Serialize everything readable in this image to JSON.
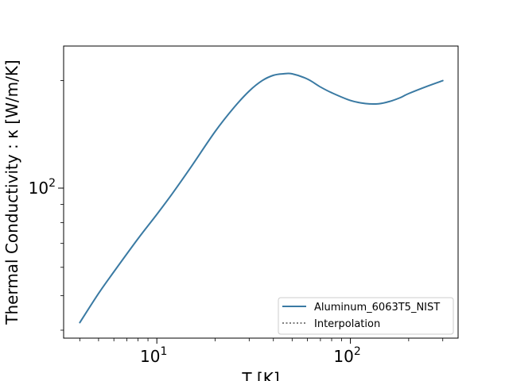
{
  "chart_data": {
    "type": "line",
    "title": "",
    "xlabel": "T [K]",
    "ylabel": "Thermal Conductivity : κ [W/m/K]",
    "xscale": "log",
    "yscale": "log",
    "xlim": [
      3.3,
      360
    ],
    "ylim": [
      38,
      250
    ],
    "x_ticks": [
      {
        "value": 10,
        "label": "10",
        "exp": "1"
      },
      {
        "value": 100,
        "label": "10",
        "exp": "2"
      }
    ],
    "y_ticks": [
      {
        "value": 100,
        "label": "10",
        "exp": "2"
      }
    ],
    "grid": false,
    "legend_position": "lower right",
    "series": [
      {
        "name": "Aluminum_6063T5_NIST",
        "style": "solid",
        "color": "#3a7aa3",
        "x": [
          4,
          5,
          6,
          8,
          10,
          12,
          15,
          20,
          25,
          30,
          35,
          40,
          45,
          50,
          60,
          70,
          80,
          100,
          120,
          140,
          160,
          180,
          200,
          250,
          300
        ],
        "y": [
          42,
          50.7,
          58.3,
          72.2,
          84.4,
          96.4,
          114.5,
          144,
          168,
          187,
          200,
          207,
          209,
          209,
          202,
          192,
          185,
          176,
          172.5,
          172.3,
          175,
          179,
          184,
          193,
          200
        ]
      },
      {
        "name": "Interpolation",
        "style": "dotted",
        "color": "#7f7f7f",
        "x": [],
        "y": []
      }
    ]
  }
}
